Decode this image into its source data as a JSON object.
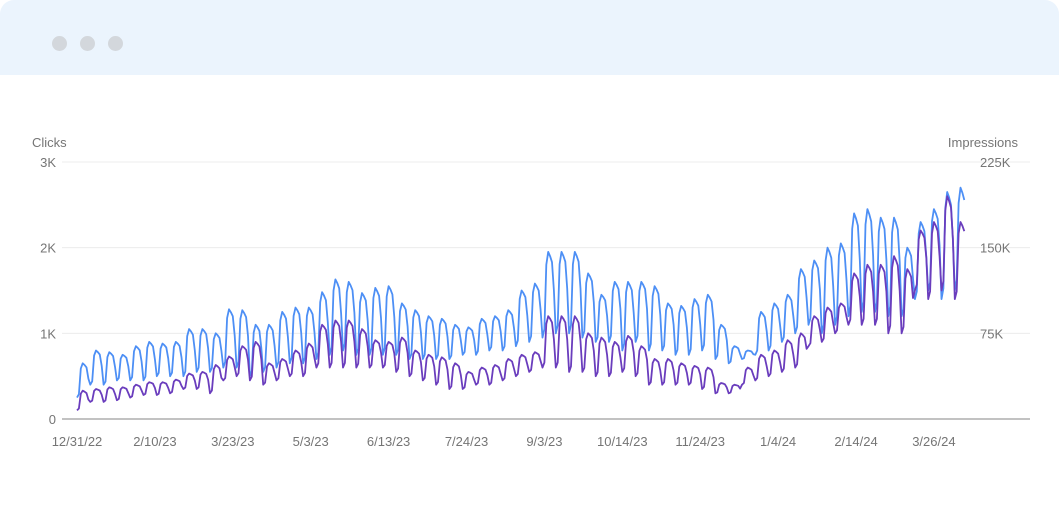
{
  "window": {
    "controls": [
      "close",
      "minimize",
      "maximize"
    ]
  },
  "chart_data": {
    "type": "line",
    "left_axis": {
      "label": "Clicks",
      "ticks": [
        "0",
        "1K",
        "2K",
        "3K"
      ],
      "range": [
        0,
        3000
      ]
    },
    "right_axis": {
      "label": "Impressions",
      "ticks": [
        "75K",
        "150K",
        "225K"
      ],
      "range": [
        0,
        225000
      ]
    },
    "x_ticks": [
      "12/31/22",
      "2/10/23",
      "3/23/23",
      "5/3/23",
      "6/13/23",
      "7/24/23",
      "9/3/23",
      "10/14/23",
      "11/24/23",
      "1/4/24",
      "2/14/24",
      "3/26/24"
    ],
    "x_range": [
      "2022-12-31",
      "2024-04-13"
    ],
    "granularity": "daily, weekly high/low approximated",
    "grid": true,
    "series": [
      {
        "axis": "left",
        "color": "#4d8ff5",
        "weekly_high": [
          650,
          800,
          780,
          750,
          850,
          900,
          880,
          900,
          1050,
          1050,
          1000,
          1280,
          1270,
          1100,
          1100,
          1250,
          1300,
          1300,
          1480,
          1630,
          1600,
          1470,
          1530,
          1550,
          1350,
          1270,
          1200,
          1170,
          1100,
          1070,
          1170,
          1200,
          1270,
          1500,
          1580,
          1950,
          1950,
          1950,
          1700,
          1450,
          1600,
          1600,
          1600,
          1550,
          1350,
          1320,
          1400,
          1450,
          1100,
          850,
          800,
          1250,
          1350,
          1450,
          1750,
          1850,
          2000,
          2050,
          2400,
          2450,
          2350,
          2350,
          2000,
          2300,
          2450,
          2650,
          2700,
          2600
        ],
        "weekly_low": [
          250,
          400,
          400,
          450,
          450,
          450,
          500,
          500,
          500,
          550,
          550,
          600,
          600,
          500,
          550,
          600,
          650,
          650,
          700,
          750,
          800,
          750,
          750,
          750,
          750,
          700,
          700,
          700,
          700,
          750,
          750,
          800,
          800,
          850,
          900,
          950,
          1000,
          1000,
          950,
          900,
          900,
          800,
          900,
          800,
          800,
          750,
          750,
          800,
          700,
          650,
          700,
          750,
          800,
          900,
          1000,
          1100,
          1000,
          1100,
          1200,
          1250,
          1250,
          1200,
          1200,
          1400,
          1500,
          1400,
          1500,
          2200
        ]
      },
      {
        "axis": "right",
        "color": "#6a3dbd",
        "weekly_high": [
          24750,
          26250,
          27750,
          27750,
          30000,
          32250,
          32250,
          34500,
          39750,
          41250,
          47250,
          54750,
          63750,
          67500,
          48750,
          52500,
          60000,
          66000,
          82500,
          86250,
          86250,
          78750,
          69000,
          67500,
          71250,
          60000,
          56250,
          54000,
          48750,
          41250,
          45000,
          47250,
          52500,
          56250,
          58500,
          90000,
          90000,
          90000,
          75000,
          71250,
          67500,
          72750,
          63750,
          52500,
          52500,
          48750,
          46500,
          45000,
          31500,
          30000,
          45000,
          56250,
          60000,
          69000,
          75000,
          90000,
          97500,
          101250,
          127500,
          135000,
          135000,
          142500,
          131250,
          165000,
          172500,
          195000,
          172500,
          165000
        ],
        "weekly_low": [
          7500,
          15000,
          15000,
          16500,
          18750,
          21000,
          21000,
          22500,
          26250,
          26250,
          22500,
          33750,
          37500,
          33750,
          30000,
          33750,
          37500,
          37500,
          45000,
          45000,
          45000,
          45000,
          45000,
          45000,
          41250,
          37500,
          33750,
          30000,
          26250,
          26250,
          30000,
          30000,
          33750,
          37500,
          41250,
          45000,
          45000,
          41250,
          41250,
          37500,
          37500,
          41250,
          37500,
          30000,
          30000,
          30000,
          30000,
          26250,
          22500,
          22500,
          30000,
          33750,
          37500,
          41250,
          45000,
          63750,
          67500,
          75000,
          82500,
          82500,
          82500,
          75000,
          75000,
          112500,
          105000,
          112500,
          105000,
          142500
        ]
      }
    ]
  }
}
